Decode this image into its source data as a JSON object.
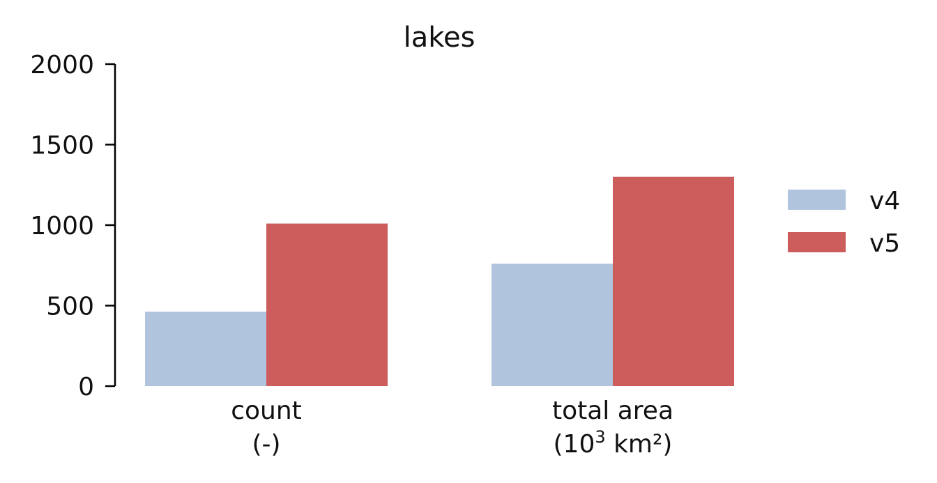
{
  "chart_data": {
    "type": "bar",
    "title": "lakes",
    "categories": [
      {
        "line1": "count",
        "line2": "(-)",
        "sup": ""
      },
      {
        "line1": "total area",
        "line2": "(10",
        "sup": "3",
        "line2_tail": " km²)"
      }
    ],
    "series": [
      {
        "name": "v4",
        "color": "#b0c4de",
        "values": [
          462,
          760
        ]
      },
      {
        "name": "v5",
        "color": "#cd5c5c",
        "values": [
          1010,
          1300
        ]
      }
    ],
    "ylim": [
      0,
      2000
    ],
    "yticks": [
      "0",
      "500",
      "1000",
      "1500",
      "2000"
    ],
    "ytick_values": [
      0,
      500,
      1000,
      1500,
      2000
    ],
    "grid": false,
    "legend_position": "right"
  }
}
